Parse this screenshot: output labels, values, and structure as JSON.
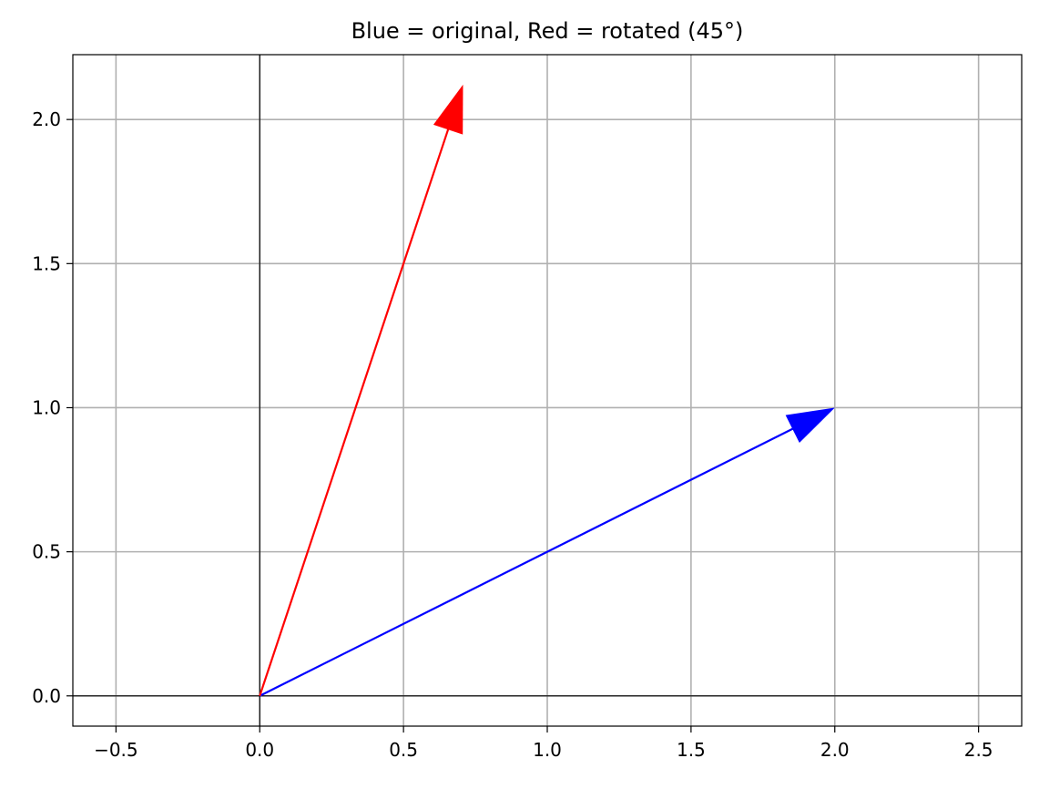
{
  "chart_data": {
    "type": "quiver",
    "title": "Blue = original, Red = rotated (45°)",
    "xlabel": "",
    "ylabel": "",
    "xlim": [
      -0.65,
      2.65
    ],
    "ylim": [
      -0.105,
      2.225
    ],
    "xticks": [
      -0.5,
      0.0,
      0.5,
      1.0,
      1.5,
      2.0,
      2.5
    ],
    "xtick_labels": [
      "−0.5",
      "0.0",
      "0.5",
      "1.0",
      "1.5",
      "2.0",
      "2.5"
    ],
    "yticks": [
      0.0,
      0.5,
      1.0,
      1.5,
      2.0
    ],
    "ytick_labels": [
      "0.0",
      "0.5",
      "1.0",
      "1.5",
      "2.0"
    ],
    "grid": true,
    "reference_lines": {
      "x": 0,
      "y": 0,
      "color": "#000000"
    },
    "series": [
      {
        "color": "#0000ff",
        "start": [
          0,
          0
        ],
        "end": [
          2.0,
          1.0
        ]
      },
      {
        "color": "#ff0000",
        "start": [
          0,
          0
        ],
        "end": [
          0.707,
          2.121
        ]
      }
    ]
  }
}
